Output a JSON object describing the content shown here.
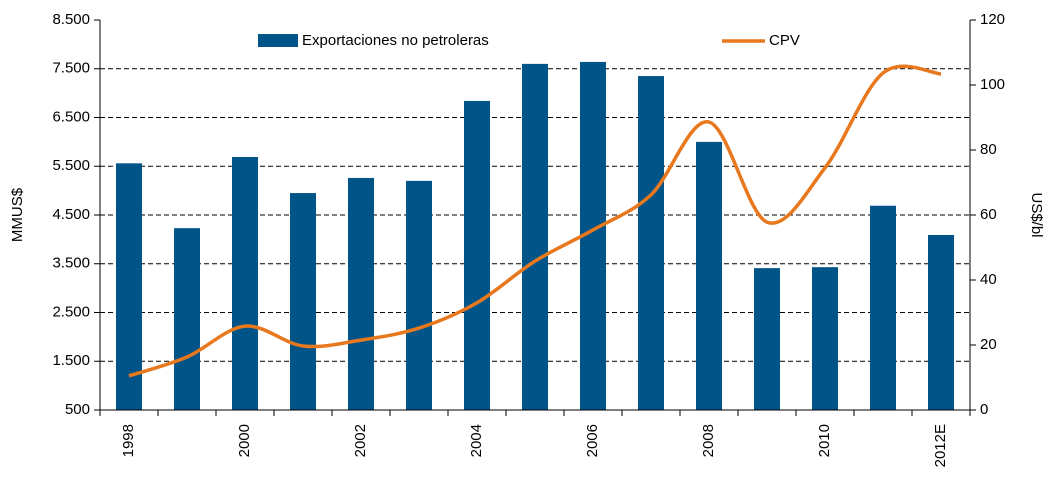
{
  "chart_data": {
    "type": "bar_line",
    "categories": [
      "1998",
      null,
      "2000",
      null,
      "2002",
      null,
      "2004",
      null,
      "2006",
      null,
      "2008",
      null,
      "2010",
      null,
      "2012E"
    ],
    "series": [
      {
        "name": "Exportaciones no petroleras",
        "color": "#005487",
        "type": "bar",
        "axis": "y",
        "values": [
          5560,
          4230,
          5690,
          4950,
          5260,
          5200,
          6840,
          7600,
          7640,
          7350,
          6000,
          3410,
          3430,
          4690,
          4090
        ]
      },
      {
        "name": "CPV",
        "color": "#e8781e",
        "type": "line",
        "axis": "y2",
        "values": [
          10.5,
          16.3,
          25.8,
          19.7,
          21.5,
          25.2,
          33,
          45.8,
          55.4,
          66.2,
          88.6,
          57.8,
          74.5,
          103.7,
          103.4
        ]
      }
    ],
    "ylabel": "MMUS$",
    "y2label": "US$/bl",
    "ylim": [
      500,
      8500
    ],
    "yticks": [
      500,
      {
        "value": 1500,
        "label": "1.500"
      },
      {
        "value": 2500,
        "label": "2.500"
      },
      {
        "value": 3500,
        "label": "3.500"
      },
      {
        "value": 4500,
        "label": "4.500"
      },
      {
        "value": 5500,
        "label": "5.500"
      },
      {
        "value": 6500,
        "label": "6.500"
      },
      {
        "value": 7500,
        "label": "7.500"
      },
      {
        "value": 8500,
        "label": "8.500"
      }
    ],
    "y2lim": [
      0,
      120
    ],
    "y2ticks": [
      0,
      20,
      40,
      60,
      80,
      100,
      120
    ],
    "grid": true,
    "legend": "top"
  }
}
